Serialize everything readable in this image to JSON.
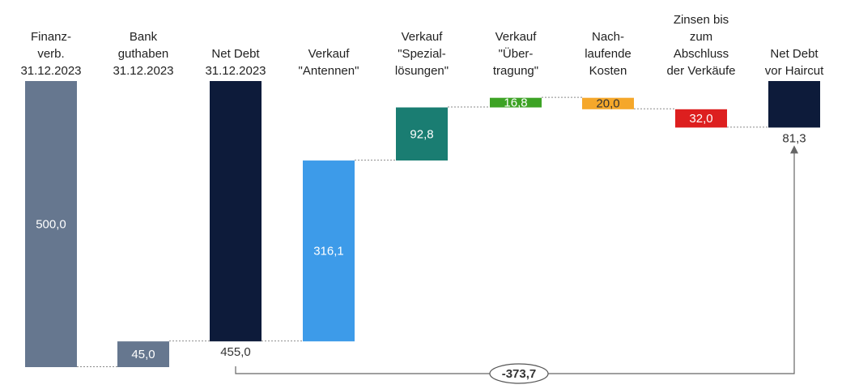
{
  "chart_data": {
    "type": "waterfall",
    "value_unit": "",
    "categories": [
      {
        "label": [
          "Finanz-",
          "verb.",
          "31.12.2023"
        ]
      },
      {
        "label": [
          "Bank",
          "guthaben",
          "31.12.2023"
        ]
      },
      {
        "label": [
          "Net Debt",
          "31.12.2023"
        ]
      },
      {
        "label": [
          "Verkauf",
          "\"Antennen\""
        ]
      },
      {
        "label": [
          "Verkauf",
          "\"Spezial-",
          "lösungen\""
        ]
      },
      {
        "label": [
          "Verkauf",
          "\"Über-",
          "tragung\""
        ]
      },
      {
        "label": [
          "Nach-",
          "laufende",
          "Kosten"
        ]
      },
      {
        "label": [
          "Zinsen bis",
          "zum",
          "Abschluss",
          "der Verkäufe"
        ]
      },
      {
        "label": [
          "Net Debt",
          "vor Haircut"
        ]
      }
    ],
    "bars": [
      {
        "base": 0,
        "top": 500.0,
        "value_label": "500,0",
        "color": "#66778f",
        "label_color": "#ffffff",
        "label_pos": "inside"
      },
      {
        "base": 0,
        "top": 45.0,
        "value_label": "45,0",
        "color": "#66778f",
        "label_color": "#ffffff",
        "label_pos": "inside"
      },
      {
        "base": 45.0,
        "top": 500.0,
        "value_label": "455,0",
        "color": "#0d1b3a",
        "label_color": "#333333",
        "label_pos": "below"
      },
      {
        "base": 45.0,
        "top": 361.1,
        "value_label": "316,1",
        "color": "#3d9be9",
        "label_color": "#ffffff",
        "label_pos": "inside"
      },
      {
        "base": 361.1,
        "top": 453.9,
        "value_label": "92,8",
        "color": "#1a7d72",
        "label_color": "#ffffff",
        "label_pos": "inside"
      },
      {
        "base": 453.9,
        "top": 470.7,
        "value_label": "16,8",
        "color": "#3da325",
        "label_color": "#ffffff",
        "label_pos": "inside"
      },
      {
        "base": 450.7,
        "top": 470.7,
        "value_label": "20,0",
        "color": "#f5a72a",
        "label_color": "#333333",
        "label_pos": "inside"
      },
      {
        "base": 418.7,
        "top": 450.7,
        "value_label": "32,0",
        "color": "#dd1f1f",
        "label_color": "#ffffff",
        "label_pos": "inside"
      },
      {
        "base": 418.7,
        "top": 500.0,
        "value_label": "81,3",
        "color": "#0d1b3a",
        "label_color": "#333333",
        "label_pos": "below"
      }
    ],
    "difference": {
      "from_bar": 2,
      "to_bar": 8,
      "label": "-373,7"
    },
    "y_range": [
      0,
      500
    ]
  }
}
